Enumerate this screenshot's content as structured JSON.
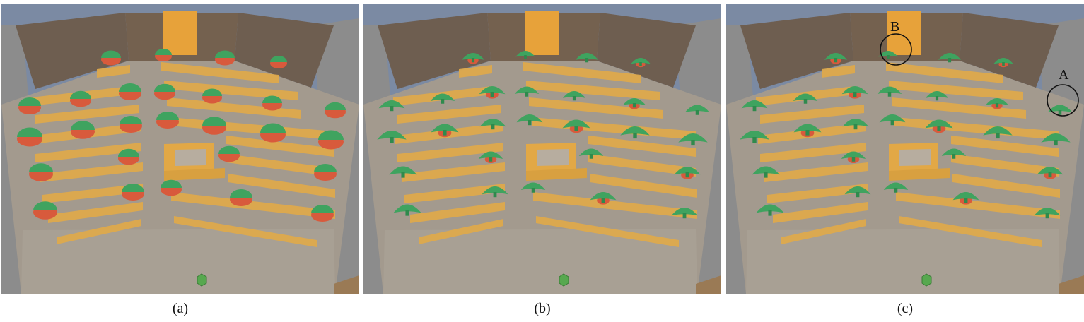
{
  "figure": {
    "panels": [
      {
        "id": "a",
        "caption": "(a)",
        "mushrooms": "half-red",
        "markers": []
      },
      {
        "id": "b",
        "caption": "(b)",
        "mushrooms": "mostly-green",
        "markers": []
      },
      {
        "id": "c",
        "caption": "(c)",
        "mushrooms": "mostly-green",
        "markers": [
          {
            "label": "B"
          },
          {
            "label": "A"
          }
        ]
      }
    ],
    "colors": {
      "sky": "#7b8aa3",
      "wall": "#6e5e50",
      "floor": "#a39a8e",
      "side_wall": "#8c8c8c",
      "plank": "#e0a94a",
      "door": "#e7a23a",
      "mushroom_green": "#3fa35f",
      "mushroom_red": "#d85a3c",
      "agent": "#57a84f"
    }
  }
}
